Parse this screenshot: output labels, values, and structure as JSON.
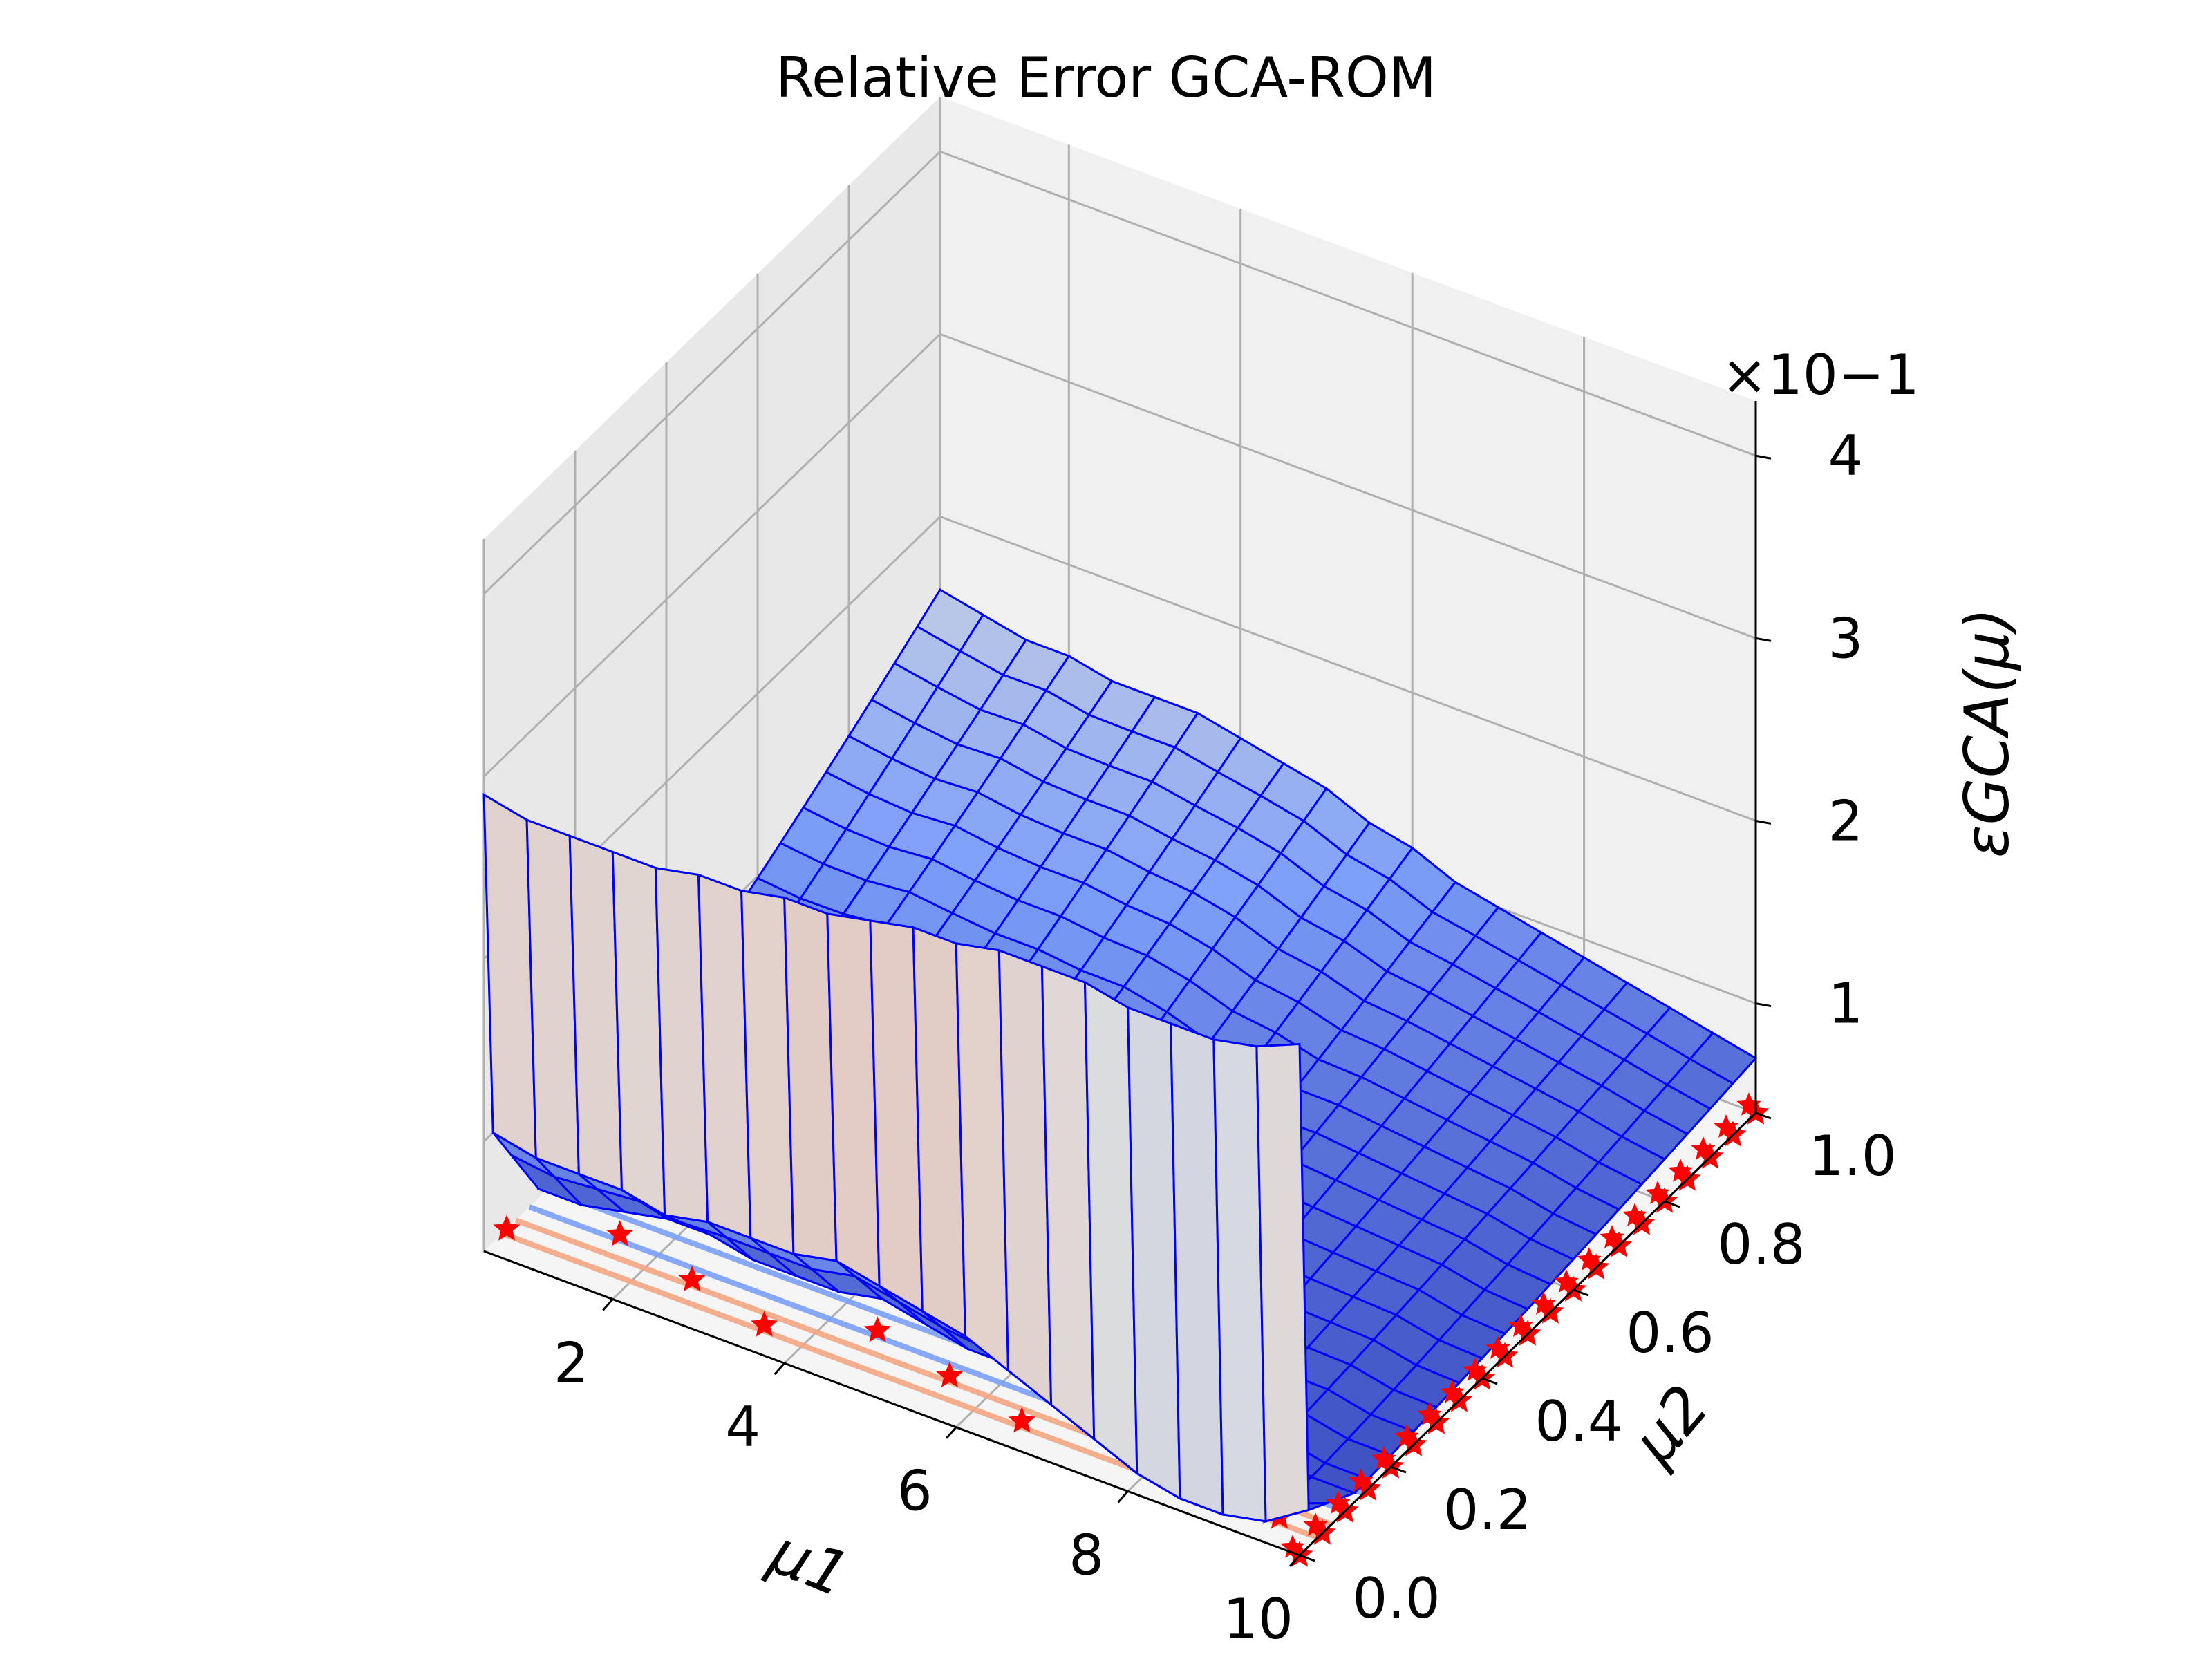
{
  "chart_data": {
    "type": "surface3d",
    "title": "Relative Error GCA-ROM",
    "xlabel": "μ1",
    "ylabel": "μ2",
    "zlabel": "εGCA(μ)",
    "z_multiplier": "×10−1",
    "xlim": [
      0.5,
      10
    ],
    "ylim": [
      0,
      1
    ],
    "zlim": [
      0.4,
      4.3
    ],
    "x_ticks": [
      "2",
      "4",
      "6",
      "8",
      "10"
    ],
    "y_ticks": [
      "0.0",
      "0.2",
      "0.4",
      "0.6",
      "0.8",
      "1.0"
    ],
    "z_ticks": [
      "1",
      "2",
      "3",
      "4"
    ],
    "colormap": "coolwarm",
    "edge_color": "#0000ff",
    "marker_color": "#ff0000",
    "grid": true,
    "surface": {
      "x": [
        0.5,
        1.0,
        1.5,
        2.0,
        2.5,
        3.0,
        3.5,
        4.0,
        4.5,
        5.0,
        5.5,
        6.0,
        6.5,
        7.0,
        7.5,
        8.0,
        8.5,
        9.0,
        9.5,
        10.0
      ],
      "wall_z_at_mu2_0": [
        2.9,
        2.85,
        2.85,
        2.85,
        2.85,
        2.9,
        2.9,
        2.95,
        2.95,
        3.0,
        3.05,
        3.05,
        3.1,
        3.1,
        3.1,
        3.05,
        3.05,
        3.05,
        3.1,
        3.2
      ],
      "floor_z_at_mu2_0_02": [
        1.0,
        0.95,
        0.95,
        0.95,
        0.9,
        0.95,
        0.95,
        0.95,
        1.0,
        0.95,
        0.9,
        0.85,
        0.75,
        0.65,
        0.55,
        0.45,
        0.4,
        0.4,
        0.45,
        0.6
      ],
      "trough_z_mid_mu2": [
        0.45,
        0.45,
        0.5,
        0.55,
        0.55,
        0.5,
        0.5,
        0.5,
        0.55,
        0.5,
        0.45,
        0.45,
        0.45,
        0.5,
        0.5,
        0.5,
        0.5,
        0.5,
        0.45,
        0.45
      ],
      "far_edge_z_at_mu2_1": [
        1.6,
        1.55,
        1.5,
        1.5,
        1.45,
        1.45,
        1.45,
        1.4,
        1.35,
        1.3,
        1.2,
        1.15,
        1.05,
        1.0,
        0.95,
        0.9,
        0.85,
        0.8,
        0.75,
        0.7
      ]
    },
    "training_points_mu2": [
      0.0,
      0.05,
      0.1,
      0.15,
      0.2,
      0.25,
      0.3,
      0.35,
      0.4,
      0.45,
      0.5,
      0.55,
      0.6,
      0.65,
      0.7,
      0.75,
      0.8,
      0.85,
      0.9,
      0.95,
      1.0
    ]
  }
}
